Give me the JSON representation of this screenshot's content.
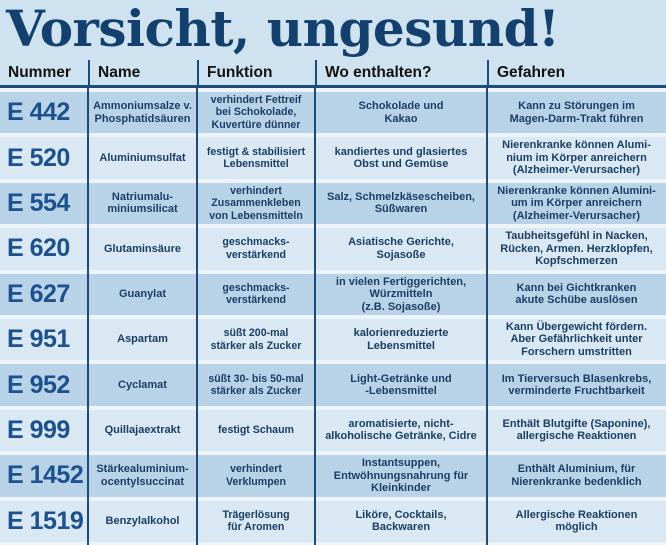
{
  "title": "Vorsicht, ungesund!",
  "colors": {
    "page_bg": "#cfe2ef",
    "stripe_dark": "#b8d2e8",
    "stripe_light": "#d9e8f3",
    "row_gap": "#ecf3f9",
    "divider": "#1d4a78",
    "title_text": "#14406e",
    "header_text": "#121212",
    "number_text": "#1d518d",
    "cell_text": "#1c3e63"
  },
  "table": {
    "columns": [
      "Nummer",
      "Name",
      "Funktion",
      "Wo enthalten?",
      "Gefahren"
    ],
    "rows": [
      {
        "number": "E 442",
        "name": "Ammoniumsalze v.\nPhosphatidsäuren",
        "function": "verhindert Fettreif\nbei Schokolade,\nKuvertüre dünner",
        "contained_in": "Schokolade und\nKakao",
        "dangers": "Kann zu Störungen im\nMagen-Darm-Trakt führen"
      },
      {
        "number": "E 520",
        "name": "Aluminiumsulfat",
        "function": "festigt & stabilisiert\nLebensmittel",
        "contained_in": "kandiertes und glasiertes\nObst und Gemüse",
        "dangers": "Nierenkranke können Alumi-\nnium im Körper anreichern\n(Alzheimer-Verursacher)"
      },
      {
        "number": "E 554",
        "name": "Natriumalu-\nminiumsilicat",
        "function": "verhindert\nZusammenkleben\nvon Lebensmitteln",
        "contained_in": "Salz, Schmelzkäsescheiben,\nSüßwaren",
        "dangers": "Nierenkranke können Alumini-\num im Körper anreichern\n(Alzheimer-Verursacher)"
      },
      {
        "number": "E 620",
        "name": "Glutaminsäure",
        "function": "geschmacks-\nverstärkend",
        "contained_in": "Asiatische Gerichte,\nSojasoße",
        "dangers": "Taubheitsgefühl in Nacken,\nRücken, Armen. Herzklopfen,\nKopfschmerzen"
      },
      {
        "number": "E 627",
        "name": "Guanylat",
        "function": "geschmacks-\nverstärkend",
        "contained_in": "in vielen Fertiggerichten,\nWürzmitteln\n(z.B. Sojasoße)",
        "dangers": "Kann bei Gichtkranken\nakute Schübe auslösen"
      },
      {
        "number": "E 951",
        "name": "Aspartam",
        "function": "süßt 200-mal\nstärker als Zucker",
        "contained_in": "kalorienreduzierte\nLebensmittel",
        "dangers": "Kann Übergewicht fördern.\nAber Gefährlichkeit unter\nForschern umstritten"
      },
      {
        "number": "E 952",
        "name": "Cyclamat",
        "function": "süßt 30- bis 50-mal\nstärker als Zucker",
        "contained_in": "Light-Getränke und\n-Lebensmittel",
        "dangers": "Im Tierversuch Blasenkrebs,\nverminderte Fruchtbarkeit"
      },
      {
        "number": "E 999",
        "name": "Quillajaextrakt",
        "function": "festigt Schaum",
        "contained_in": "aromatisierte, nicht-\nalkoholische Getränke, Cidre",
        "dangers": "Enthält Blutgifte (Saponine),\nallergische Reaktionen"
      },
      {
        "number": "E 1452",
        "name": "Stärkealuminium-\nocentylsuccinat",
        "function": "verhindert\nVerklumpen",
        "contained_in": "Instantsuppen,\nEntwöhnungsnahrung für\nKleinkinder",
        "dangers": "Enthält Aluminium, für\nNierenkranke bedenklich"
      },
      {
        "number": "E 1519",
        "name": "Benzylalkohol",
        "function": "Trägerlösung\nfür Aromen",
        "contained_in": "Liköre, Cocktails,\nBackwaren",
        "dangers": "Allergische Reaktionen\nmöglich"
      }
    ]
  }
}
